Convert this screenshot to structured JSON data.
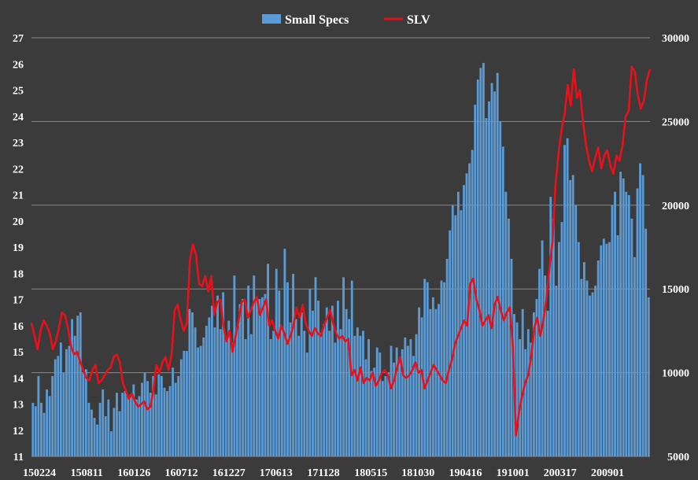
{
  "chart_data": {
    "type": "bar",
    "title": "",
    "legend_position": "top-center",
    "grid": true,
    "colors": {
      "background": "#3b3b3b",
      "bars": "#5b9bd5",
      "line": "#e8111a",
      "grid": "#8a8a8a",
      "text": "#ffffff"
    },
    "x_tick_labels": [
      "150224",
      "150811",
      "160126",
      "160712",
      "161227",
      "170613",
      "171128",
      "180515",
      "181030",
      "190416",
      "191001",
      "200317",
      "200901"
    ],
    "y_left": {
      "min": 11,
      "max": 27,
      "ticks": [
        "11",
        "12",
        "13",
        "14",
        "15",
        "16",
        "17",
        "18",
        "19",
        "20",
        "21",
        "22",
        "23",
        "24",
        "25",
        "26",
        "27"
      ]
    },
    "y_right": {
      "min": 5000,
      "max": 30000,
      "ticks": [
        "5000",
        "10000",
        "15000",
        "20000",
        "25000",
        "30000"
      ]
    },
    "series": [
      {
        "name": "Small Specs",
        "type": "bar",
        "axis": "right",
        "values": [
          8200,
          8000,
          9800,
          8200,
          7600,
          9000,
          8600,
          9800,
          10800,
          11000,
          11800,
          10000,
          11400,
          11600,
          13200,
          12200,
          13400,
          13600,
          10000,
          10200,
          8200,
          7800,
          7300,
          6900,
          8200,
          9000,
          7400,
          8400,
          6500,
          7900,
          8800,
          7700,
          8800,
          8900,
          8600,
          8700,
          9300,
          8400,
          8600,
          9400,
          10000,
          9500,
          8800,
          9800,
          8700,
          9900,
          9800,
          9100,
          8900,
          9200,
          10300,
          9400,
          9800,
          10800,
          11300,
          11300,
          13800,
          13600,
          12700,
          11500,
          11600,
          12100,
          12800,
          13300,
          14000,
          12700,
          14600,
          12600,
          14800,
          12100,
          13100,
          11800,
          15800,
          12700,
          14100,
          14400,
          12000,
          15200,
          12300,
          15800,
          14300,
          14400,
          14500,
          14700,
          16500,
          12000,
          12500,
          16200,
          14900,
          12600,
          17400,
          15400,
          13000,
          15900,
          13200,
          12200,
          13600,
          12500,
          11200,
          15000,
          13700,
          15700,
          14300,
          12400,
          12900,
          13900,
          12500,
          14000,
          11800,
          14300,
          12600,
          15700,
          13800,
          13200,
          15500,
          12200,
          12700,
          12200,
          12500,
          10800,
          12000,
          10100,
          10300,
          11500,
          11200,
          9500,
          9800,
          10000,
          11600,
          10600,
          11500,
          10700,
          11400,
          12100,
          11600,
          12000,
          11000,
          12300,
          13900,
          13300,
          15600,
          15400,
          13800,
          14500,
          13800,
          14100,
          15500,
          15400,
          16800,
          18500,
          20000,
          19400,
          20800,
          19700,
          21200,
          21900,
          22500,
          23300,
          26000,
          27500,
          28200,
          28500,
          25200,
          26200,
          27300,
          26800,
          27900,
          25000,
          23500,
          20800,
          19200,
          16800,
          13500,
          13000,
          12000,
          13800,
          11400,
          12600,
          11800,
          13600,
          14400,
          16200,
          17900,
          15800,
          13700,
          20500,
          19200,
          15200,
          17800,
          19000,
          23600,
          24000,
          21500,
          21800,
          20000,
          17800,
          15600,
          16600,
          15500,
          14600,
          14800,
          15200,
          16700,
          17600,
          18000,
          17700,
          17800,
          20000,
          20800,
          18200,
          22000,
          21600,
          20800,
          20600,
          19200,
          16900,
          21000,
          22500,
          21800,
          18600,
          14500
        ],
        "note_scale": "right axis"
      },
      {
        "name": "SLV",
        "type": "line",
        "axis": "left",
        "values": [
          16.1,
          15.6,
          15.1,
          15.8,
          16.2,
          16.0,
          15.7,
          15.1,
          15.4,
          15.9,
          16.5,
          16.4,
          15.9,
          15.2,
          14.9,
          15.0,
          14.6,
          14.3,
          14.0,
          13.9,
          14.3,
          14.5,
          13.8,
          13.9,
          14.1,
          14.3,
          14.4,
          14.8,
          14.9,
          14.6,
          13.8,
          13.5,
          13.2,
          13.4,
          13.1,
          12.9,
          13.0,
          13.1,
          12.8,
          12.9,
          13.5,
          14.5,
          14.2,
          14.6,
          14.8,
          14.3,
          14.9,
          16.6,
          16.8,
          16.2,
          15.8,
          16.1,
          18.5,
          19.1,
          18.7,
          17.6,
          17.5,
          17.9,
          17.3,
          17.9,
          16.4,
          16.9,
          17.0,
          16.0,
          15.4,
          15.8,
          15.0,
          15.6,
          16.2,
          16.9,
          17.0,
          16.3,
          16.6,
          16.9,
          17.1,
          16.4,
          16.7,
          17.0,
          16.0,
          16.2,
          15.8,
          15.5,
          16.0,
          15.7,
          15.3,
          15.6,
          16.0,
          16.7,
          16.3,
          16.8,
          16.1,
          15.8,
          15.6,
          15.9,
          15.7,
          15.6,
          16.0,
          16.3,
          16.6,
          16.1,
          15.7,
          15.5,
          15.6,
          15.4,
          15.5,
          14.1,
          14.3,
          13.9,
          14.4,
          13.8,
          14.0,
          13.9,
          14.2,
          13.7,
          13.9,
          14.2,
          14.3,
          14.1,
          13.6,
          13.9,
          14.4,
          14.8,
          14.1,
          14.0,
          14.1,
          14.3,
          14.6,
          14.2,
          14.3,
          13.6,
          13.9,
          14.2,
          14.5,
          14.3,
          14.1,
          13.9,
          13.8,
          14.3,
          14.7,
          15.3,
          15.6,
          15.9,
          16.2,
          16.0,
          17.6,
          17.8,
          17.0,
          16.6,
          16.0,
          16.2,
          16.4,
          15.9,
          16.8,
          17.1,
          16.6,
          16.2,
          16.5,
          16.7,
          15.2,
          11.8,
          12.7,
          13.3,
          13.8,
          14.1,
          14.8,
          15.9,
          16.3,
          15.6,
          16.2,
          17.0,
          18.2,
          19.2,
          21.4,
          22.6,
          23.5,
          24.1,
          25.2,
          24.4,
          25.8,
          24.7,
          25.0,
          23.8,
          22.9,
          22.3,
          21.9,
          22.4,
          22.8,
          22.0,
          22.5,
          22.7,
          22.1,
          21.8,
          22.5,
          22.3,
          22.9,
          24.0,
          24.2,
          25.9,
          25.7,
          24.8,
          24.3,
          24.6,
          25.4,
          25.8
        ],
        "note_scale": "left axis"
      }
    ]
  }
}
